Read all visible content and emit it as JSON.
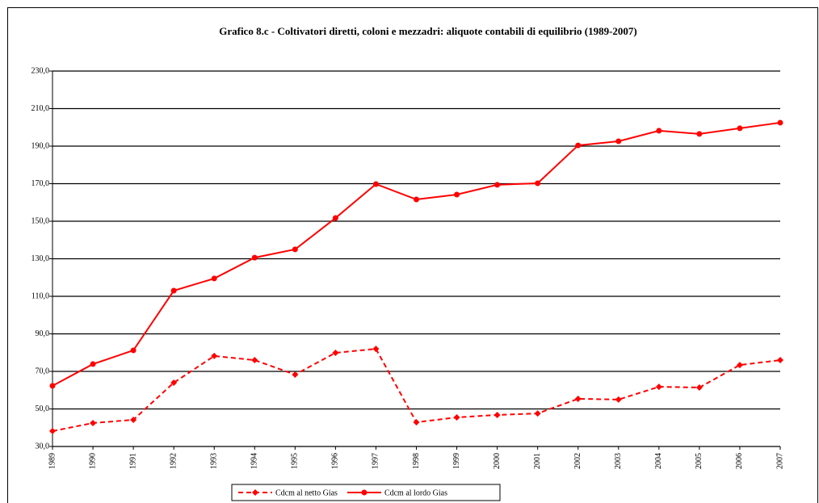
{
  "chart_data": {
    "type": "line",
    "title": "Grafico 8.c  -  Coltivatori diretti, coloni e mezzadri:  aliquote contabili di equilibrio (1989-2007)",
    "categories": [
      "1989",
      "1990",
      "1991",
      "1992",
      "1993",
      "1994",
      "1995",
      "1996",
      "1997",
      "1998",
      "1999",
      "2000",
      "2001",
      "2002",
      "2003",
      "2004",
      "2005",
      "2006",
      "2007"
    ],
    "series": [
      {
        "name": "Cdcm al netto Gias",
        "color": "#ff0000",
        "line_style": "dashed",
        "marker": "diamond",
        "values": [
          38.2,
          42.5,
          44.2,
          64.0,
          78.2,
          76.0,
          68.3,
          79.9,
          82.0,
          42.9,
          45.5,
          46.8,
          47.6,
          55.4,
          55.0,
          61.8,
          61.4,
          73.4,
          76.0
        ]
      },
      {
        "name": "Cdcm al lordo Gias",
        "color": "#ff0000",
        "line_style": "solid",
        "marker": "circle",
        "values": [
          62.3,
          73.9,
          81.2,
          113.0,
          119.5,
          130.6,
          135.0,
          151.7,
          169.8,
          161.6,
          164.2,
          169.4,
          170.2,
          190.4,
          192.6,
          198.2,
          196.5,
          199.5,
          202.5
        ]
      }
    ],
    "ylim": [
      30,
      230
    ],
    "yticks": [
      {
        "value": 30,
        "label": "30,0"
      },
      {
        "value": 50,
        "label": "50,0"
      },
      {
        "value": 70,
        "label": "70,0"
      },
      {
        "value": 90,
        "label": "90,0"
      },
      {
        "value": 110,
        "label": "110,0"
      },
      {
        "value": 130,
        "label": "130,0"
      },
      {
        "value": 150,
        "label": "150,0"
      },
      {
        "value": 170,
        "label": "170,0"
      },
      {
        "value": 190,
        "label": "190,0"
      },
      {
        "value": 210,
        "label": "210,0"
      },
      {
        "value": 230,
        "label": "230,0"
      }
    ],
    "grid": true,
    "legend": "bottom"
  }
}
